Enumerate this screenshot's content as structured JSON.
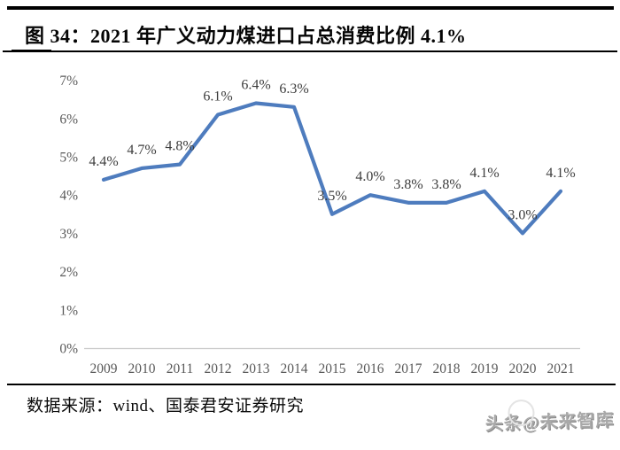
{
  "header": {
    "title": "图 34：2021 年广义动力煤进口占总消费比例 4.1%"
  },
  "chart_data": {
    "type": "line",
    "title": "2021年广义动力煤进口占总消费比例 4.1%",
    "categories": [
      "2009",
      "2010",
      "2011",
      "2012",
      "2013",
      "2014",
      "2015",
      "2016",
      "2017",
      "2018",
      "2019",
      "2020",
      "2021"
    ],
    "values": [
      4.4,
      4.7,
      4.8,
      6.1,
      6.4,
      6.3,
      3.5,
      4.0,
      3.8,
      3.8,
      4.1,
      3.0,
      4.1
    ],
    "data_labels": [
      "4.4%",
      "4.7%",
      "4.8%",
      "6.1%",
      "6.4%",
      "6.3%",
      "3.5%",
      "4.0%",
      "3.8%",
      "3.8%",
      "4.1%",
      "3.0%",
      "4.1%"
    ],
    "y_ticks": [
      "0%",
      "1%",
      "2%",
      "3%",
      "4%",
      "5%",
      "6%",
      "7%"
    ],
    "ylim": [
      0,
      7
    ],
    "xlabel": "",
    "ylabel": "",
    "grid": false,
    "legend": "none",
    "line_color": "#4E7CBE",
    "axis_color": "#c9c9c9",
    "tick_color": "#595959",
    "data_label_color": "#3d3d3d"
  },
  "footer": {
    "source": "数据来源：wind、国泰君安证券研究",
    "watermark": "头条@未来智库"
  }
}
